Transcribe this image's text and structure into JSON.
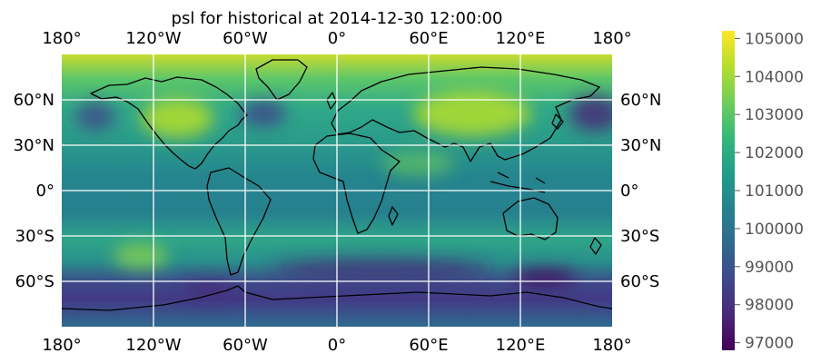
{
  "title": "psl for historical at 2014-12-30 12:00:00",
  "map": {
    "projection": "PlateCarree",
    "extent": {
      "lon": [
        -180,
        180
      ],
      "lat": [
        -90,
        90
      ]
    },
    "variable": "psl",
    "colormap": "viridis",
    "gridlines": true
  },
  "lon_ticks": [
    {
      "value": -180,
      "label": "180°"
    },
    {
      "value": -120,
      "label": "120°W"
    },
    {
      "value": -60,
      "label": "60°W"
    },
    {
      "value": 0,
      "label": "0°"
    },
    {
      "value": 60,
      "label": "60°E"
    },
    {
      "value": 120,
      "label": "120°E"
    },
    {
      "value": 180,
      "label": "180°"
    }
  ],
  "lat_ticks": [
    {
      "value": 60,
      "label": "60°N"
    },
    {
      "value": 30,
      "label": "30°N"
    },
    {
      "value": 0,
      "label": "0°"
    },
    {
      "value": -30,
      "label": "30°S"
    },
    {
      "value": -60,
      "label": "60°S"
    }
  ],
  "colorbar": {
    "min": 96800,
    "max": 105200,
    "ticks": [
      {
        "value": 105000,
        "label": "105000"
      },
      {
        "value": 104000,
        "label": "104000"
      },
      {
        "value": 103000,
        "label": "103000"
      },
      {
        "value": 102000,
        "label": "102000"
      },
      {
        "value": 101000,
        "label": "101000"
      },
      {
        "value": 100000,
        "label": "100000"
      },
      {
        "value": 99000,
        "label": "99000"
      },
      {
        "value": 98000,
        "label": "98000"
      },
      {
        "value": 97000,
        "label": "97000"
      }
    ]
  },
  "colors": {
    "viridis": [
      "#440154",
      "#482878",
      "#3e4989",
      "#31688e",
      "#26828e",
      "#1f9e89",
      "#35b779",
      "#6ece58",
      "#b5de2b",
      "#fde725"
    ],
    "coastline": "#000000",
    "gridline": "#ffffff"
  }
}
